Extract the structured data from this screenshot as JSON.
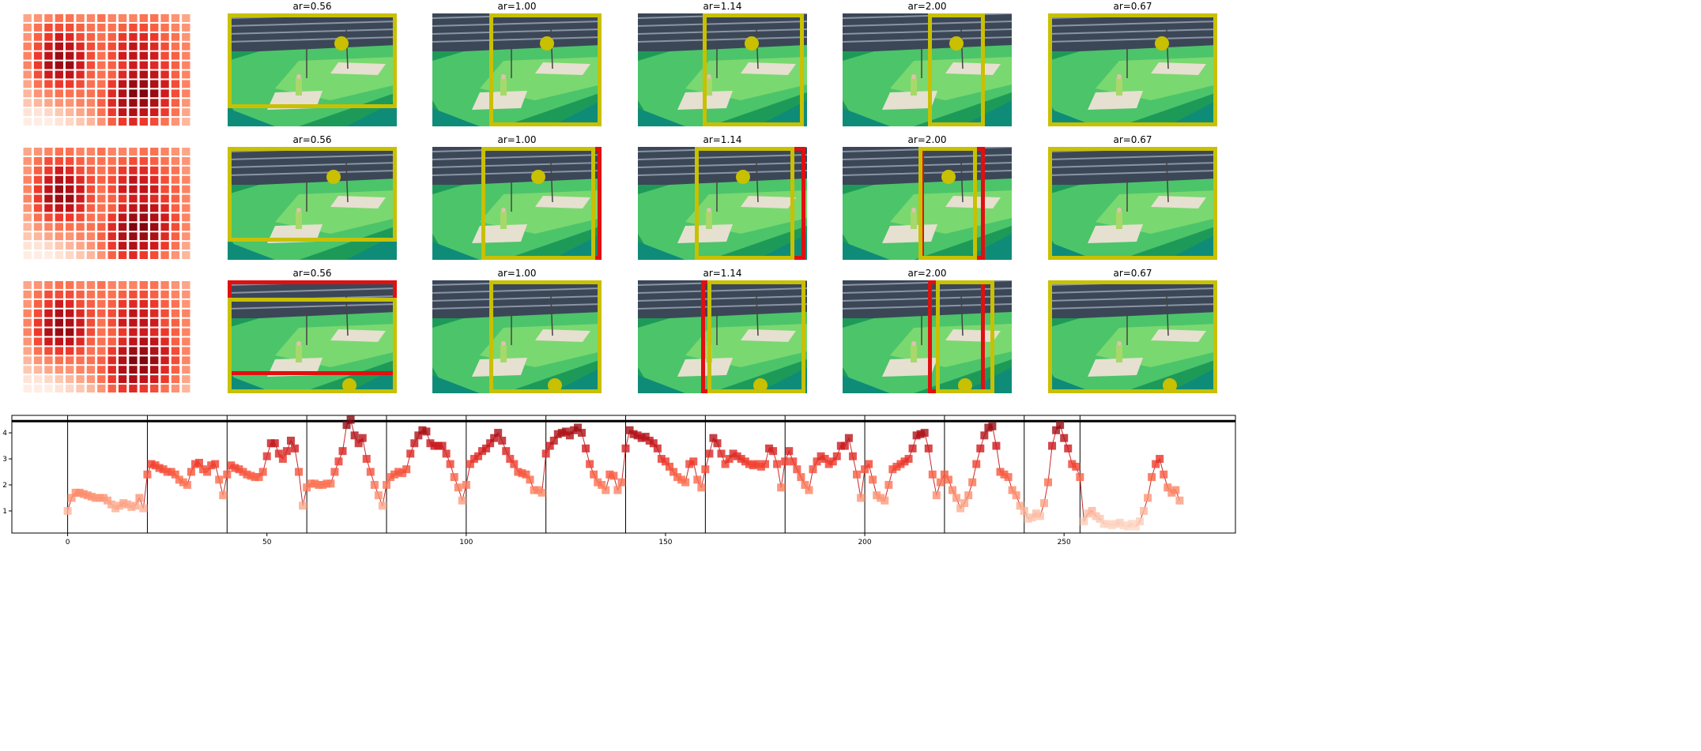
{
  "image_grid": {
    "titles": [
      [
        "ar=0.56",
        "ar=1.00",
        "ar=1.14",
        "ar=2.00",
        "ar=0.67"
      ],
      [
        "ar=0.56",
        "ar=1.00",
        "ar=1.14",
        "ar=2.00",
        "ar=0.67"
      ],
      [
        "ar=0.56",
        "ar=1.00",
        "ar=1.14",
        "ar=2.00",
        "ar=0.67"
      ]
    ]
  },
  "chart_data": [
    {
      "type": "heatmap",
      "colormap": "Reds",
      "values": [
        [
          0.35,
          0.4,
          0.45,
          0.5,
          0.5,
          0.45,
          0.45,
          0.5,
          0.45,
          0.45,
          0.45,
          0.5,
          0.5,
          0.45,
          0.4,
          0.35
        ],
        [
          0.4,
          0.5,
          0.6,
          0.6,
          0.6,
          0.55,
          0.5,
          0.5,
          0.5,
          0.55,
          0.6,
          0.6,
          0.55,
          0.5,
          0.45,
          0.4
        ],
        [
          0.4,
          0.55,
          0.65,
          0.75,
          0.7,
          0.6,
          0.55,
          0.5,
          0.55,
          0.65,
          0.7,
          0.7,
          0.65,
          0.55,
          0.5,
          0.4
        ],
        [
          0.45,
          0.6,
          0.75,
          0.85,
          0.8,
          0.7,
          0.6,
          0.55,
          0.6,
          0.7,
          0.8,
          0.75,
          0.7,
          0.6,
          0.5,
          0.45
        ],
        [
          0.45,
          0.65,
          0.8,
          0.9,
          0.85,
          0.75,
          0.6,
          0.5,
          0.6,
          0.75,
          0.8,
          0.8,
          0.75,
          0.6,
          0.55,
          0.45
        ],
        [
          0.45,
          0.65,
          0.85,
          0.9,
          0.9,
          0.75,
          0.6,
          0.5,
          0.55,
          0.65,
          0.75,
          0.75,
          0.7,
          0.65,
          0.55,
          0.45
        ],
        [
          0.4,
          0.6,
          0.75,
          0.8,
          0.8,
          0.7,
          0.55,
          0.5,
          0.55,
          0.7,
          0.8,
          0.85,
          0.8,
          0.7,
          0.55,
          0.45
        ],
        [
          0.35,
          0.5,
          0.6,
          0.65,
          0.65,
          0.6,
          0.5,
          0.5,
          0.65,
          0.8,
          0.9,
          0.9,
          0.85,
          0.75,
          0.6,
          0.45
        ],
        [
          0.3,
          0.4,
          0.45,
          0.5,
          0.5,
          0.5,
          0.5,
          0.55,
          0.7,
          0.85,
          0.95,
          0.95,
          0.9,
          0.75,
          0.6,
          0.45
        ],
        [
          0.25,
          0.3,
          0.35,
          0.4,
          0.4,
          0.45,
          0.45,
          0.55,
          0.7,
          0.85,
          0.9,
          0.9,
          0.85,
          0.7,
          0.55,
          0.4
        ],
        [
          0.15,
          0.15,
          0.2,
          0.25,
          0.3,
          0.35,
          0.4,
          0.5,
          0.65,
          0.8,
          0.85,
          0.8,
          0.75,
          0.65,
          0.5,
          0.35
        ],
        [
          0.1,
          0.1,
          0.1,
          0.15,
          0.2,
          0.25,
          0.3,
          0.4,
          0.55,
          0.65,
          0.7,
          0.65,
          0.6,
          0.5,
          0.4,
          0.3
        ]
      ]
    },
    {
      "type": "line",
      "colormap": "Reds",
      "color": "#c62828",
      "x": [
        0,
        1,
        2,
        3,
        4,
        5,
        6,
        7,
        8,
        9,
        10,
        11,
        12,
        13,
        14,
        15,
        16,
        17,
        18,
        19,
        20,
        21,
        22,
        23,
        24,
        25,
        26,
        27,
        28,
        29,
        30,
        31,
        32,
        33,
        34,
        35,
        36,
        37,
        38,
        39,
        40,
        41,
        42,
        43,
        44,
        45,
        46,
        47,
        48,
        49,
        50,
        51,
        52,
        53,
        54,
        55,
        56,
        57,
        58,
        59,
        60,
        61,
        62,
        63,
        64,
        65,
        66,
        67,
        68,
        69,
        70,
        71,
        72,
        73,
        74,
        75,
        76,
        77,
        78,
        79,
        80,
        81,
        82,
        83,
        84,
        85,
        86,
        87,
        88,
        89,
        90,
        91,
        92,
        93,
        94,
        95,
        96,
        97,
        98,
        99,
        100,
        101,
        102,
        103,
        104,
        105,
        106,
        107,
        108,
        109,
        110,
        111,
        112,
        113,
        114,
        115,
        116,
        117,
        118,
        119,
        120,
        121,
        122,
        123,
        124,
        125,
        126,
        127,
        128,
        129,
        130,
        131,
        132,
        133,
        134,
        135,
        136,
        137,
        138,
        139,
        140,
        141,
        142,
        143,
        144,
        145,
        146,
        147,
        148,
        149,
        150,
        151,
        152,
        153,
        154,
        155,
        156,
        157,
        158,
        159,
        160,
        161,
        162,
        163,
        164,
        165,
        166,
        167,
        168,
        169,
        170,
        171,
        172,
        173,
        174,
        175,
        176,
        177,
        178,
        179,
        180,
        181,
        182,
        183,
        184,
        185,
        186,
        187,
        188,
        189,
        190,
        191,
        192,
        193,
        194,
        195,
        196,
        197,
        198,
        199,
        200,
        201,
        202,
        203,
        204,
        205,
        206,
        207,
        208,
        209,
        210,
        211,
        212,
        213,
        214,
        215,
        216,
        217,
        218,
        219,
        220,
        221,
        222,
        223,
        224,
        225,
        226,
        227,
        228,
        229,
        230,
        231,
        232,
        233,
        234,
        235,
        236,
        237,
        238,
        239,
        240,
        241,
        242,
        243,
        244,
        245,
        246,
        247,
        248,
        249,
        250,
        251,
        252,
        253,
        254,
        255,
        256,
        257,
        258,
        259,
        260,
        261,
        262,
        263,
        264,
        265,
        266,
        267,
        268,
        269,
        270,
        271,
        272,
        273,
        274,
        275,
        276,
        277,
        278,
        279
      ],
      "values": [
        1.0,
        1.5,
        1.7,
        1.7,
        1.65,
        1.6,
        1.55,
        1.5,
        1.5,
        1.5,
        1.4,
        1.25,
        1.1,
        1.2,
        1.3,
        1.25,
        1.15,
        1.2,
        1.5,
        1.1,
        2.4,
        2.8,
        2.75,
        2.65,
        2.6,
        2.5,
        2.5,
        2.4,
        2.2,
        2.1,
        2.0,
        2.5,
        2.8,
        2.85,
        2.6,
        2.5,
        2.75,
        2.8,
        2.2,
        1.6,
        2.4,
        2.75,
        2.65,
        2.6,
        2.5,
        2.4,
        2.35,
        2.3,
        2.3,
        2.5,
        3.1,
        3.6,
        3.6,
        3.2,
        3.0,
        3.3,
        3.7,
        3.4,
        2.5,
        1.2,
        1.9,
        2.05,
        2.05,
        2.0,
        2.0,
        2.05,
        2.05,
        2.5,
        2.9,
        3.3,
        4.3,
        4.5,
        3.9,
        3.6,
        3.8,
        3.0,
        2.5,
        2.0,
        1.6,
        1.2,
        2.0,
        2.3,
        2.4,
        2.5,
        2.45,
        2.6,
        3.2,
        3.6,
        3.9,
        4.1,
        4.05,
        3.6,
        3.5,
        3.5,
        3.5,
        3.2,
        2.8,
        2.3,
        1.9,
        1.4,
        2.0,
        2.8,
        3.0,
        3.1,
        3.3,
        3.4,
        3.6,
        3.8,
        4.0,
        3.7,
        3.3,
        3.0,
        2.8,
        2.5,
        2.45,
        2.4,
        2.2,
        1.8,
        1.8,
        1.7,
        3.2,
        3.5,
        3.7,
        3.95,
        4.0,
        4.05,
        3.9,
        4.1,
        4.2,
        4.0,
        3.4,
        2.8,
        2.4,
        2.1,
        2.0,
        1.8,
        2.4,
        2.35,
        1.8,
        2.1,
        3.4,
        4.1,
        3.95,
        3.9,
        3.8,
        3.85,
        3.7,
        3.6,
        3.4,
        3.0,
        2.9,
        2.7,
        2.5,
        2.3,
        2.2,
        2.1,
        2.8,
        2.9,
        2.2,
        1.9,
        2.6,
        3.2,
        3.8,
        3.6,
        3.2,
        2.8,
        3.0,
        3.2,
        3.1,
        3.0,
        2.9,
        2.8,
        2.75,
        2.8,
        2.7,
        2.8,
        3.4,
        3.3,
        2.8,
        1.9,
        2.9,
        3.3,
        2.9,
        2.6,
        2.3,
        2.0,
        1.8,
        2.6,
        2.9,
        3.1,
        3.0,
        2.8,
        2.9,
        3.1,
        3.5,
        3.5,
        3.8,
        3.1,
        2.4,
        1.5,
        2.6,
        2.8,
        2.2,
        1.6,
        1.5,
        1.4,
        2.0,
        2.6,
        2.7,
        2.8,
        2.9,
        3.0,
        3.4,
        3.9,
        3.95,
        4.0,
        3.4,
        2.4,
        1.6,
        2.1,
        2.4,
        2.2,
        1.8,
        1.5,
        1.1,
        1.3,
        1.6,
        2.1,
        2.8,
        3.4,
        3.9,
        4.2,
        4.25,
        3.5,
        2.5,
        2.4,
        2.3,
        1.8,
        1.6,
        1.2,
        1.0,
        0.7,
        0.75,
        0.9,
        0.8,
        1.3,
        2.1,
        3.5,
        4.1,
        4.3,
        3.8,
        3.4,
        2.8,
        2.7,
        2.3,
        0.6,
        0.9,
        1.0,
        0.8,
        0.7,
        0.5,
        0.5,
        0.45,
        0.5,
        0.55,
        0.45,
        0.4,
        0.5,
        0.4,
        0.6,
        1.0,
        1.5,
        2.3,
        2.8,
        3.0,
        2.4,
        1.9,
        1.7,
        1.8,
        1.4
      ],
      "xlim": [
        -14,
        293
      ],
      "ylim": [
        0.15,
        4.67
      ],
      "xticks": [
        0,
        50,
        100,
        150,
        200,
        250
      ],
      "yticks": [
        1,
        2,
        3,
        4
      ],
      "vlines": [
        0,
        20,
        40,
        60,
        80,
        100,
        120,
        140,
        160,
        180,
        200,
        220,
        240,
        254
      ],
      "hline": 4.45
    }
  ]
}
